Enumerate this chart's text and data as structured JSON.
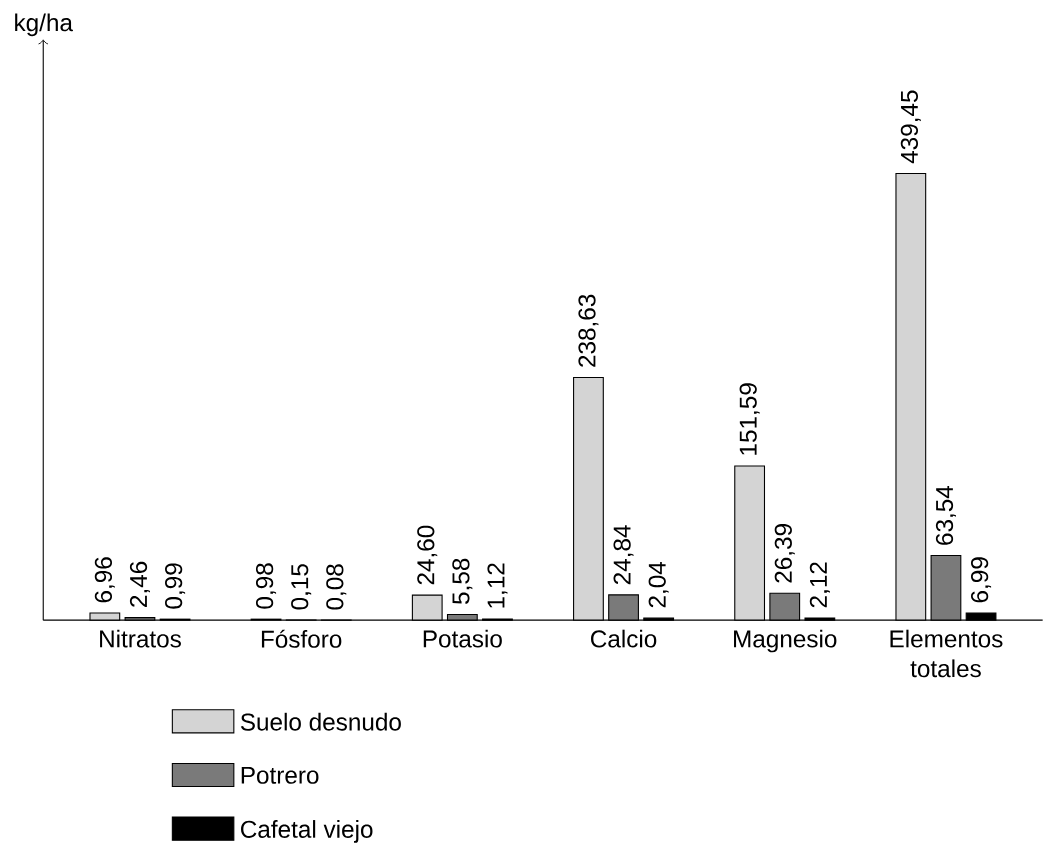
{
  "chart_data": {
    "type": "bar",
    "annotations": [
      "kg/ha"
    ],
    "categories": [
      "Nitratos",
      "Fósforo",
      "Potasio",
      "Calcio",
      "Magnesio",
      "Elementos totales"
    ],
    "series": [
      {
        "name": "Suelo desnudo",
        "color": "#d4d4d4",
        "values": [
          6.96,
          0.98,
          24.6,
          238.63,
          151.59,
          439.45
        ],
        "value_labels": [
          "6,96",
          "0,98",
          "24,60",
          "238,63",
          "151,59",
          "439,45"
        ]
      },
      {
        "name": "Potrero",
        "color": "#7a7a7a",
        "values": [
          2.46,
          0.15,
          5.58,
          24.84,
          26.39,
          63.54
        ],
        "value_labels": [
          "2,46",
          "0,15",
          "5,58",
          "24,84",
          "26,39",
          "63,54"
        ]
      },
      {
        "name": "Cafetal viejo",
        "color": "#000000",
        "values": [
          0.99,
          0.08,
          1.12,
          2.04,
          2.12,
          6.99
        ],
        "value_labels": [
          "0,99",
          "0,08",
          "1,12",
          "2,04",
          "2,12",
          "6,99"
        ]
      }
    ],
    "legend": "bottom"
  }
}
